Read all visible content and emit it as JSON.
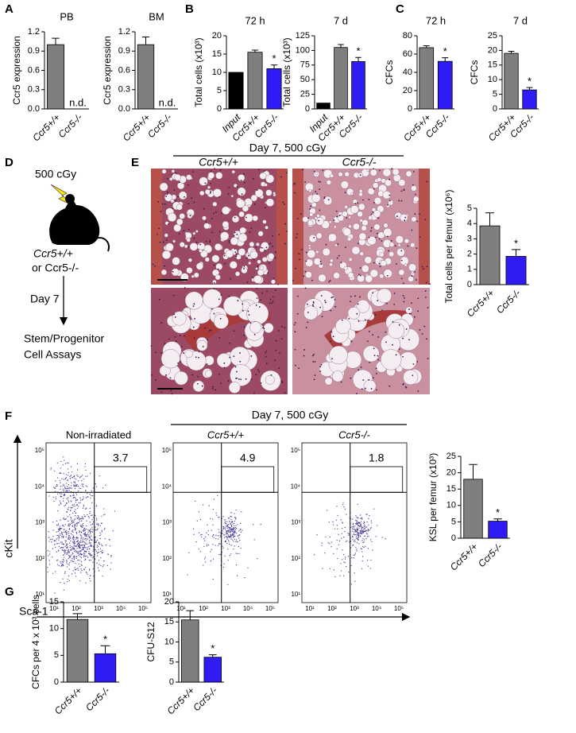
{
  "panel_labels": [
    "A",
    "B",
    "C",
    "D",
    "E",
    "F",
    "G"
  ],
  "chart_data": [
    {
      "type": "bar",
      "title": "PB",
      "y_label": "Ccr5 expression",
      "categories": [
        "Ccr5+/+",
        "Ccr5-/-"
      ],
      "values": [
        1.0,
        null
      ],
      "error": [
        0.1,
        null
      ],
      "colors": [
        "#7f7f7f",
        "#7f7f7f"
      ],
      "ylim": [
        0,
        1.2
      ],
      "yticks": [
        {
          "value": 0,
          "label": "0.0"
        },
        0.3,
        0.6,
        0.9,
        1.2
      ],
      "annotations": [
        {
          "text": "n.d.",
          "index": 1
        }
      ]
    },
    {
      "type": "bar",
      "title": "BM",
      "y_label": "Ccr5 expression",
      "categories": [
        "Ccr5+/+",
        "Ccr5-/-"
      ],
      "values": [
        1.0,
        null
      ],
      "error": [
        0.12,
        null
      ],
      "colors": [
        "#7f7f7f",
        "#7f7f7f"
      ],
      "ylim": [
        0,
        1.2
      ],
      "yticks": [
        {
          "value": 0,
          "label": "0.0"
        },
        0.3,
        0.6,
        0.9,
        1.2
      ],
      "annotations": [
        {
          "text": "n.d.",
          "index": 1
        }
      ]
    },
    {
      "type": "bar",
      "title": "72 h",
      "y_label": "Total cells (x10³)",
      "categories": [
        "Input",
        "Ccr5+/+",
        "Ccr5-/-"
      ],
      "values": [
        10,
        15.5,
        11
      ],
      "error": [
        null,
        0.6,
        1.0
      ],
      "colors": [
        "#000000",
        "#7f7f7f",
        "#2f1cf5"
      ],
      "ylim": [
        0,
        20
      ],
      "yticks": [
        0,
        5,
        10,
        15,
        20
      ],
      "annotations": [
        {
          "text": "*",
          "index": 2
        }
      ]
    },
    {
      "type": "bar",
      "title": "7 d",
      "y_label": "Total cells (x10³)",
      "categories": [
        "Input",
        "Ccr5+/+",
        "Ccr5-/-"
      ],
      "values": [
        10,
        105,
        81
      ],
      "error": [
        null,
        5,
        7
      ],
      "colors": [
        "#000000",
        "#7f7f7f",
        "#2f1cf5"
      ],
      "ylim": [
        0,
        125
      ],
      "yticks": [
        0,
        25,
        50,
        75,
        100,
        125
      ],
      "annotations": [
        {
          "text": "*",
          "index": 2
        }
      ]
    },
    {
      "type": "bar",
      "title": "72 h",
      "y_label": "CFCs",
      "categories": [
        "Ccr5+/+",
        "Ccr5-/-"
      ],
      "values": [
        67,
        52
      ],
      "error": [
        2,
        4
      ],
      "colors": [
        "#7f7f7f",
        "#2f1cf5"
      ],
      "ylim": [
        0,
        80
      ],
      "yticks": [
        0,
        20,
        40,
        60,
        80
      ],
      "annotations": [
        {
          "text": "*",
          "index": 1
        }
      ]
    },
    {
      "type": "bar",
      "title": "7 d",
      "y_label": "CFCs",
      "categories": [
        "Ccr5+/+",
        "Ccr5-/-"
      ],
      "values": [
        19,
        6.5
      ],
      "error": [
        0.7,
        0.8
      ],
      "colors": [
        "#7f7f7f",
        "#2f1cf5"
      ],
      "ylim": [
        0,
        25
      ],
      "yticks": [
        0,
        5,
        10,
        15,
        20,
        25
      ],
      "annotations": [
        {
          "text": "*",
          "index": 1
        }
      ]
    },
    {
      "type": "bar",
      "y_label": "Total cells per femur (x10⁶)",
      "categories": [
        "Ccr5+/+",
        "Ccr5-/-"
      ],
      "values": [
        3.85,
        1.85
      ],
      "error": [
        0.85,
        0.45
      ],
      "colors": [
        "#7f7f7f",
        "#2f1cf5"
      ],
      "ylim": [
        0,
        5
      ],
      "yticks": [
        0,
        1,
        2,
        3,
        4,
        5
      ],
      "annotations": [
        {
          "text": "*",
          "index": 1
        }
      ]
    },
    {
      "type": "bar",
      "y_label": "KSL per femur (x10³)",
      "categories": [
        "Ccr5+/+",
        "Ccr5-/-"
      ],
      "values": [
        18,
        5.2
      ],
      "error": [
        4.5,
        0.7
      ],
      "colors": [
        "#7f7f7f",
        "#2f1cf5"
      ],
      "ylim": [
        0,
        25
      ],
      "yticks": [
        0,
        5,
        10,
        15,
        20,
        25
      ],
      "annotations": [
        {
          "text": "*",
          "index": 1
        }
      ]
    },
    {
      "type": "bar",
      "y_label": "CFCs per 4 x 10³ cells",
      "categories": [
        "Ccr5+/+",
        "Ccr5-/-"
      ],
      "values": [
        11.7,
        5.3
      ],
      "error": [
        1.1,
        1.5
      ],
      "colors": [
        "#7f7f7f",
        "#2f1cf5"
      ],
      "ylim": [
        0,
        15
      ],
      "yticks": [
        0,
        5,
        10,
        15
      ],
      "annotations": [
        {
          "text": "*",
          "index": 1
        }
      ]
    },
    {
      "type": "bar",
      "y_label": "CFU-S12",
      "categories": [
        "Ccr5+/+",
        "Ccr5-/-"
      ],
      "values": [
        15.5,
        6.2
      ],
      "error": [
        2.3,
        0.6
      ],
      "colors": [
        "#7f7f7f",
        "#2f1cf5"
      ],
      "ylim": [
        0,
        20
      ],
      "yticks": [
        0,
        5,
        10,
        15,
        20
      ],
      "annotations": [
        {
          "text": "*",
          "index": 1
        }
      ]
    }
  ],
  "diagram": {
    "dose": "500 cGy",
    "genotype": "Ccr5+/+",
    "genotype_alt": "or Ccr5-/-",
    "time": "Day 7",
    "assay": [
      "Stem/Progenitor",
      "Cell Assays"
    ]
  },
  "histology": {
    "title": "Day 7, 500 cGy",
    "columns": [
      "Ccr5+/+",
      "Ccr5-/-"
    ]
  },
  "flow": {
    "title": "Day 7, 500 cGy",
    "x_label": "Sca-1",
    "y_label": "cKit",
    "tick_labels": [
      "10¹",
      "10²",
      "10³",
      "10⁴",
      "10⁵"
    ],
    "plots": [
      {
        "title": "Non-irradiated",
        "gate": 3.7
      },
      {
        "title": "Ccr5+/+",
        "gate": 4.9
      },
      {
        "title": "Ccr5-/-",
        "gate": 1.8
      }
    ]
  }
}
